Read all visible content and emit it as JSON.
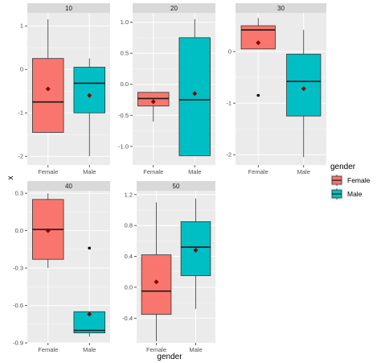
{
  "chart_data": {
    "type": "boxplot",
    "xlabel": "gender",
    "ylabel": "x",
    "categories": [
      "Female",
      "Male"
    ],
    "legend": {
      "title": "gender",
      "placement": "right",
      "items": [
        {
          "label": "Female",
          "color": "#F8766D"
        },
        {
          "label": "Male",
          "color": "#00BFC4"
        }
      ]
    },
    "facets": [
      {
        "label": "10",
        "ylim": [
          -2.2,
          1.3
        ],
        "yticks": [
          1,
          0,
          -1,
          -2
        ],
        "ytick_labels": [
          "1",
          "0",
          "-1",
          "-2"
        ],
        "boxes": [
          {
            "group": "Female",
            "min": -1.45,
            "q1": -1.45,
            "median": -0.75,
            "q3": 0.25,
            "max": 1.15,
            "mean": -0.45,
            "outliers": []
          },
          {
            "group": "Male",
            "min": -2.0,
            "q1": -1.0,
            "median": -0.32,
            "q3": 0.05,
            "max": 0.25,
            "mean": -0.6,
            "outliers": []
          }
        ]
      },
      {
        "label": "20",
        "ylim": [
          -1.3,
          1.15
        ],
        "yticks": [
          1.0,
          0.5,
          0.0,
          -0.5,
          -1.0
        ],
        "ytick_labels": [
          "1.0",
          "0.5",
          "0.0",
          "-0.5",
          "-1.0"
        ],
        "boxes": [
          {
            "group": "Female",
            "min": -0.6,
            "q1": -0.35,
            "median": -0.23,
            "q3": -0.13,
            "max": -0.13,
            "mean": -0.28,
            "outliers": []
          },
          {
            "group": "Male",
            "min": -1.15,
            "q1": -1.15,
            "median": -0.25,
            "q3": 0.75,
            "max": 1.05,
            "mean": -0.15,
            "outliers": []
          }
        ]
      },
      {
        "label": "30",
        "ylim": [
          -2.2,
          0.75
        ],
        "yticks": [
          0,
          -1,
          -2
        ],
        "ytick_labels": [
          "0",
          "-1",
          "-2"
        ],
        "boxes": [
          {
            "group": "Female",
            "min": 0.05,
            "q1": 0.05,
            "median": 0.42,
            "q3": 0.5,
            "max": 0.65,
            "mean": 0.17,
            "outliers": [
              -0.85
            ]
          },
          {
            "group": "Male",
            "min": -2.05,
            "q1": -1.25,
            "median": -0.58,
            "q3": -0.05,
            "max": 0.42,
            "mean": -0.72,
            "outliers": []
          }
        ]
      },
      {
        "label": "40",
        "ylim": [
          -0.9,
          0.32
        ],
        "yticks": [
          0.3,
          0.0,
          -0.3,
          -0.6,
          -0.9
        ],
        "ytick_labels": [
          "0.3",
          "0.0",
          "-0.3",
          "-0.6",
          "-0.9"
        ],
        "boxes": [
          {
            "group": "Female",
            "min": -0.3,
            "q1": -0.23,
            "median": 0.01,
            "q3": 0.25,
            "max": 0.3,
            "mean": 0.0,
            "outliers": []
          },
          {
            "group": "Male",
            "min": -0.85,
            "q1": -0.82,
            "median": -0.8,
            "q3": -0.65,
            "max": -0.65,
            "mean": -0.67,
            "outliers": [
              -0.14
            ]
          }
        ]
      },
      {
        "label": "50",
        "ylim": [
          -0.72,
          1.25
        ],
        "yticks": [
          1.2,
          0.8,
          0.4,
          0.0,
          -0.4
        ],
        "ytick_labels": [
          "1.2",
          "0.8",
          "0.4",
          "0.0",
          "-0.4"
        ],
        "boxes": [
          {
            "group": "Female",
            "min": -0.7,
            "q1": -0.35,
            "median": -0.05,
            "q3": 0.42,
            "max": 1.1,
            "mean": 0.07,
            "outliers": []
          },
          {
            "group": "Male",
            "min": -0.28,
            "q1": 0.15,
            "median": 0.52,
            "q3": 0.85,
            "max": 1.15,
            "mean": 0.48,
            "outliers": []
          }
        ]
      }
    ],
    "grid": true,
    "colors": {
      "panel_bg": "#EBEBEB",
      "grid_major": "#FFFFFF",
      "strip_bg": "#D9D9D9",
      "box_line": "#333333",
      "mean_point": "#8B0000"
    }
  }
}
